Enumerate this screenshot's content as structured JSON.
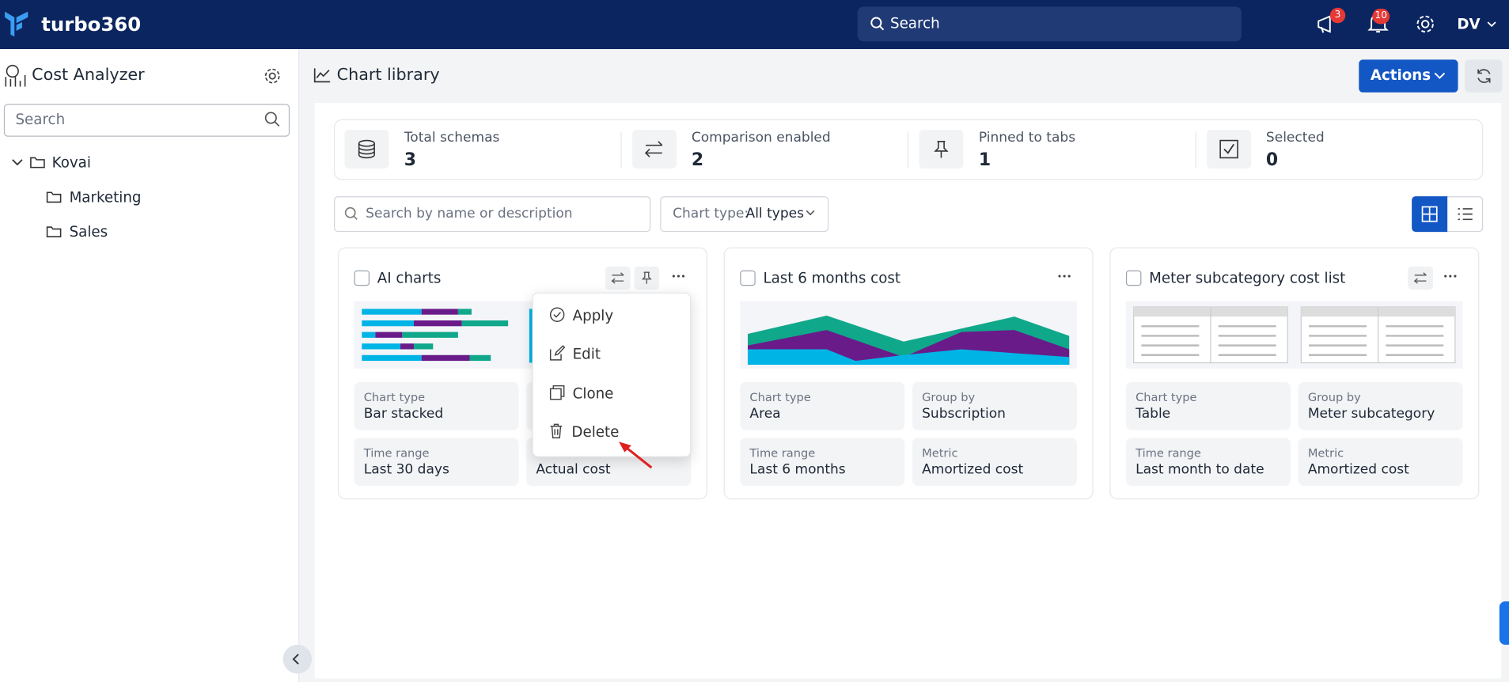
{
  "header": {
    "brand": "turbo360",
    "search_placeholder": "Search",
    "announcements_badge": "3",
    "notifications_badge": "10",
    "avatar": "DV"
  },
  "sidebar": {
    "title": "Cost Analyzer",
    "search_placeholder": "Search",
    "tree": [
      {
        "label": "Kovai",
        "children": [
          "Marketing",
          "Sales"
        ]
      }
    ]
  },
  "page": {
    "title": "Chart library",
    "actions": "Actions"
  },
  "stats": [
    {
      "label": "Total schemas",
      "value": 3
    },
    {
      "label": "Comparison enabled",
      "value": 2
    },
    {
      "label": "Pinned to tabs",
      "value": 1
    },
    {
      "label": "Selected",
      "value": 0
    }
  ],
  "filters": {
    "search_placeholder": "Search by name or description",
    "chart_type_label": "Chart type:",
    "chart_type_value": "All types"
  },
  "cards": [
    {
      "title": "AI charts",
      "fields": [
        {
          "label": "Chart type",
          "value": "Bar stacked"
        },
        null,
        {
          "label": "Time range",
          "value": "Last 30 days"
        },
        {
          "value": "Actual cost"
        }
      ]
    },
    {
      "title": "Last 6 months cost",
      "fields": [
        {
          "label": "Chart type",
          "value": "Area"
        },
        {
          "label": "Group by",
          "value": "Subscription"
        },
        {
          "label": "Time range",
          "value": "Last 6 months"
        },
        {
          "label": "Metric",
          "value": "Amortized cost"
        }
      ]
    },
    {
      "title": "Meter subcategory cost list",
      "fields": [
        {
          "label": "Chart type",
          "value": "Table"
        },
        {
          "label": "Group by",
          "value": "Meter subcategory"
        },
        {
          "label": "Time range",
          "value": "Last month to date"
        },
        {
          "label": "Metric",
          "value": "Amortized cost"
        }
      ]
    }
  ],
  "menu": {
    "items": [
      "Apply",
      "Edit",
      "Clone",
      "Delete"
    ]
  }
}
